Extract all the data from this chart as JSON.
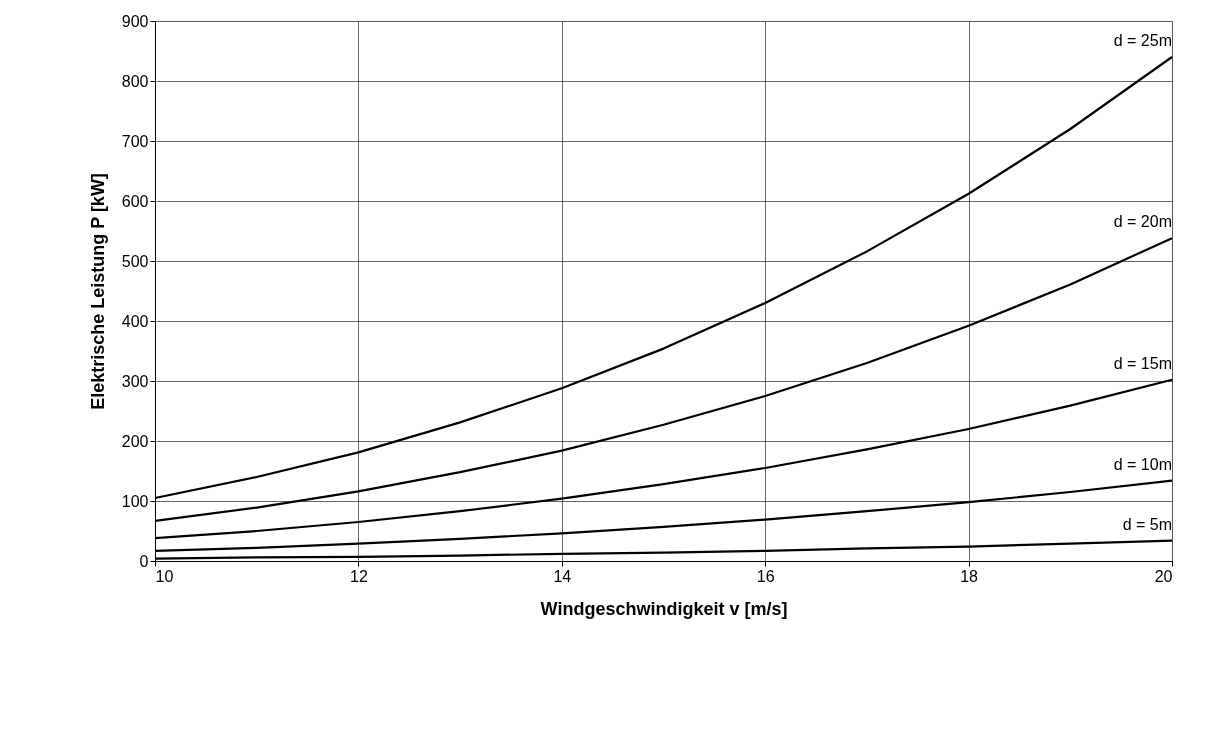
{
  "chart_data": {
    "type": "line",
    "xlabel": "Windgeschwindigkeit v [m/s]",
    "ylabel": "Elektrische Leistung P [kW]",
    "x": [
      10,
      11,
      12,
      13,
      14,
      15,
      16,
      17,
      18,
      19,
      20
    ],
    "xlim": [
      10,
      20
    ],
    "xticks": [
      10,
      12,
      14,
      16,
      18,
      20
    ],
    "ylim": [
      0,
      900
    ],
    "yticks": [
      0,
      100,
      200,
      300,
      400,
      500,
      600,
      700,
      800,
      900
    ],
    "grid": true,
    "legend": false,
    "marker": "none",
    "line_style": "solid",
    "series": [
      {
        "name": "d = 25m",
        "color": "#000000",
        "values": [
          105,
          140,
          181,
          231,
          288,
          354,
          430,
          516,
          612,
          720,
          840
        ]
      },
      {
        "name": "d = 20m",
        "color": "#000000",
        "values": [
          67,
          89,
          116,
          148,
          184,
          227,
          275,
          330,
          392,
          461,
          538
        ]
      },
      {
        "name": "d = 15m",
        "color": "#000000",
        "values": [
          38,
          50,
          65,
          83,
          104,
          128,
          155,
          186,
          220,
          259,
          302
        ]
      },
      {
        "name": "d = 10m",
        "color": "#000000",
        "values": [
          17,
          22,
          29,
          37,
          46,
          57,
          69,
          83,
          98,
          115,
          134
        ]
      },
      {
        "name": "d = 5m",
        "color": "#000000",
        "values": [
          4,
          6,
          7,
          9,
          12,
          14,
          17,
          21,
          24,
          29,
          34
        ]
      }
    ]
  }
}
